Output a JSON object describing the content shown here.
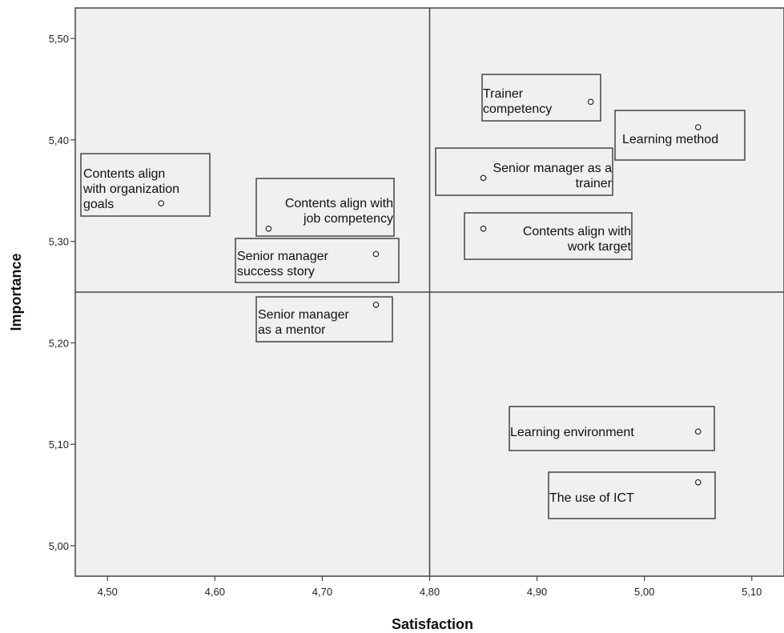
{
  "chart_data": {
    "type": "scatter",
    "title": "",
    "xlabel": "Satisfaction",
    "ylabel": "Importance",
    "xlim": [
      4.47,
      5.13
    ],
    "ylim": [
      4.97,
      5.53
    ],
    "x_ticks": [
      "4,50",
      "4,60",
      "4,70",
      "4,80",
      "4,90",
      "5,00",
      "5,10"
    ],
    "y_ticks": [
      "5,00",
      "5,10",
      "5,20",
      "5,30",
      "5,40",
      "5,50"
    ],
    "reference_lines": {
      "x": 4.8,
      "y": 5.25
    },
    "background_color": "#f0f0f0",
    "grid": false,
    "points": [
      {
        "label": [
          "Trainer",
          "competency"
        ],
        "x": 4.95,
        "y": 5.4375
      },
      {
        "label": [
          "Learning method"
        ],
        "x": 5.05,
        "y": 5.4125
      },
      {
        "label": [
          "Contents align",
          "with organization",
          "goals"
        ],
        "x": 4.55,
        "y": 5.3375
      },
      {
        "label": [
          "Senior manager as a",
          "trainer"
        ],
        "x": 4.85,
        "y": 5.3625
      },
      {
        "label": [
          "Contents align with",
          "job competency"
        ],
        "x": 4.65,
        "y": 5.3125
      },
      {
        "label": [
          "Contents align with",
          "work target"
        ],
        "x": 4.85,
        "y": 5.3125
      },
      {
        "label": [
          "Senior manager",
          "success story"
        ],
        "x": 4.75,
        "y": 5.2875
      },
      {
        "label": [
          "Senior manager",
          "as a mentor"
        ],
        "x": 4.75,
        "y": 5.2375
      },
      {
        "label": [
          "Learning environment"
        ],
        "x": 5.05,
        "y": 5.1125
      },
      {
        "label": [
          "The use of ICT"
        ],
        "x": 5.05,
        "y": 5.0625
      }
    ]
  }
}
